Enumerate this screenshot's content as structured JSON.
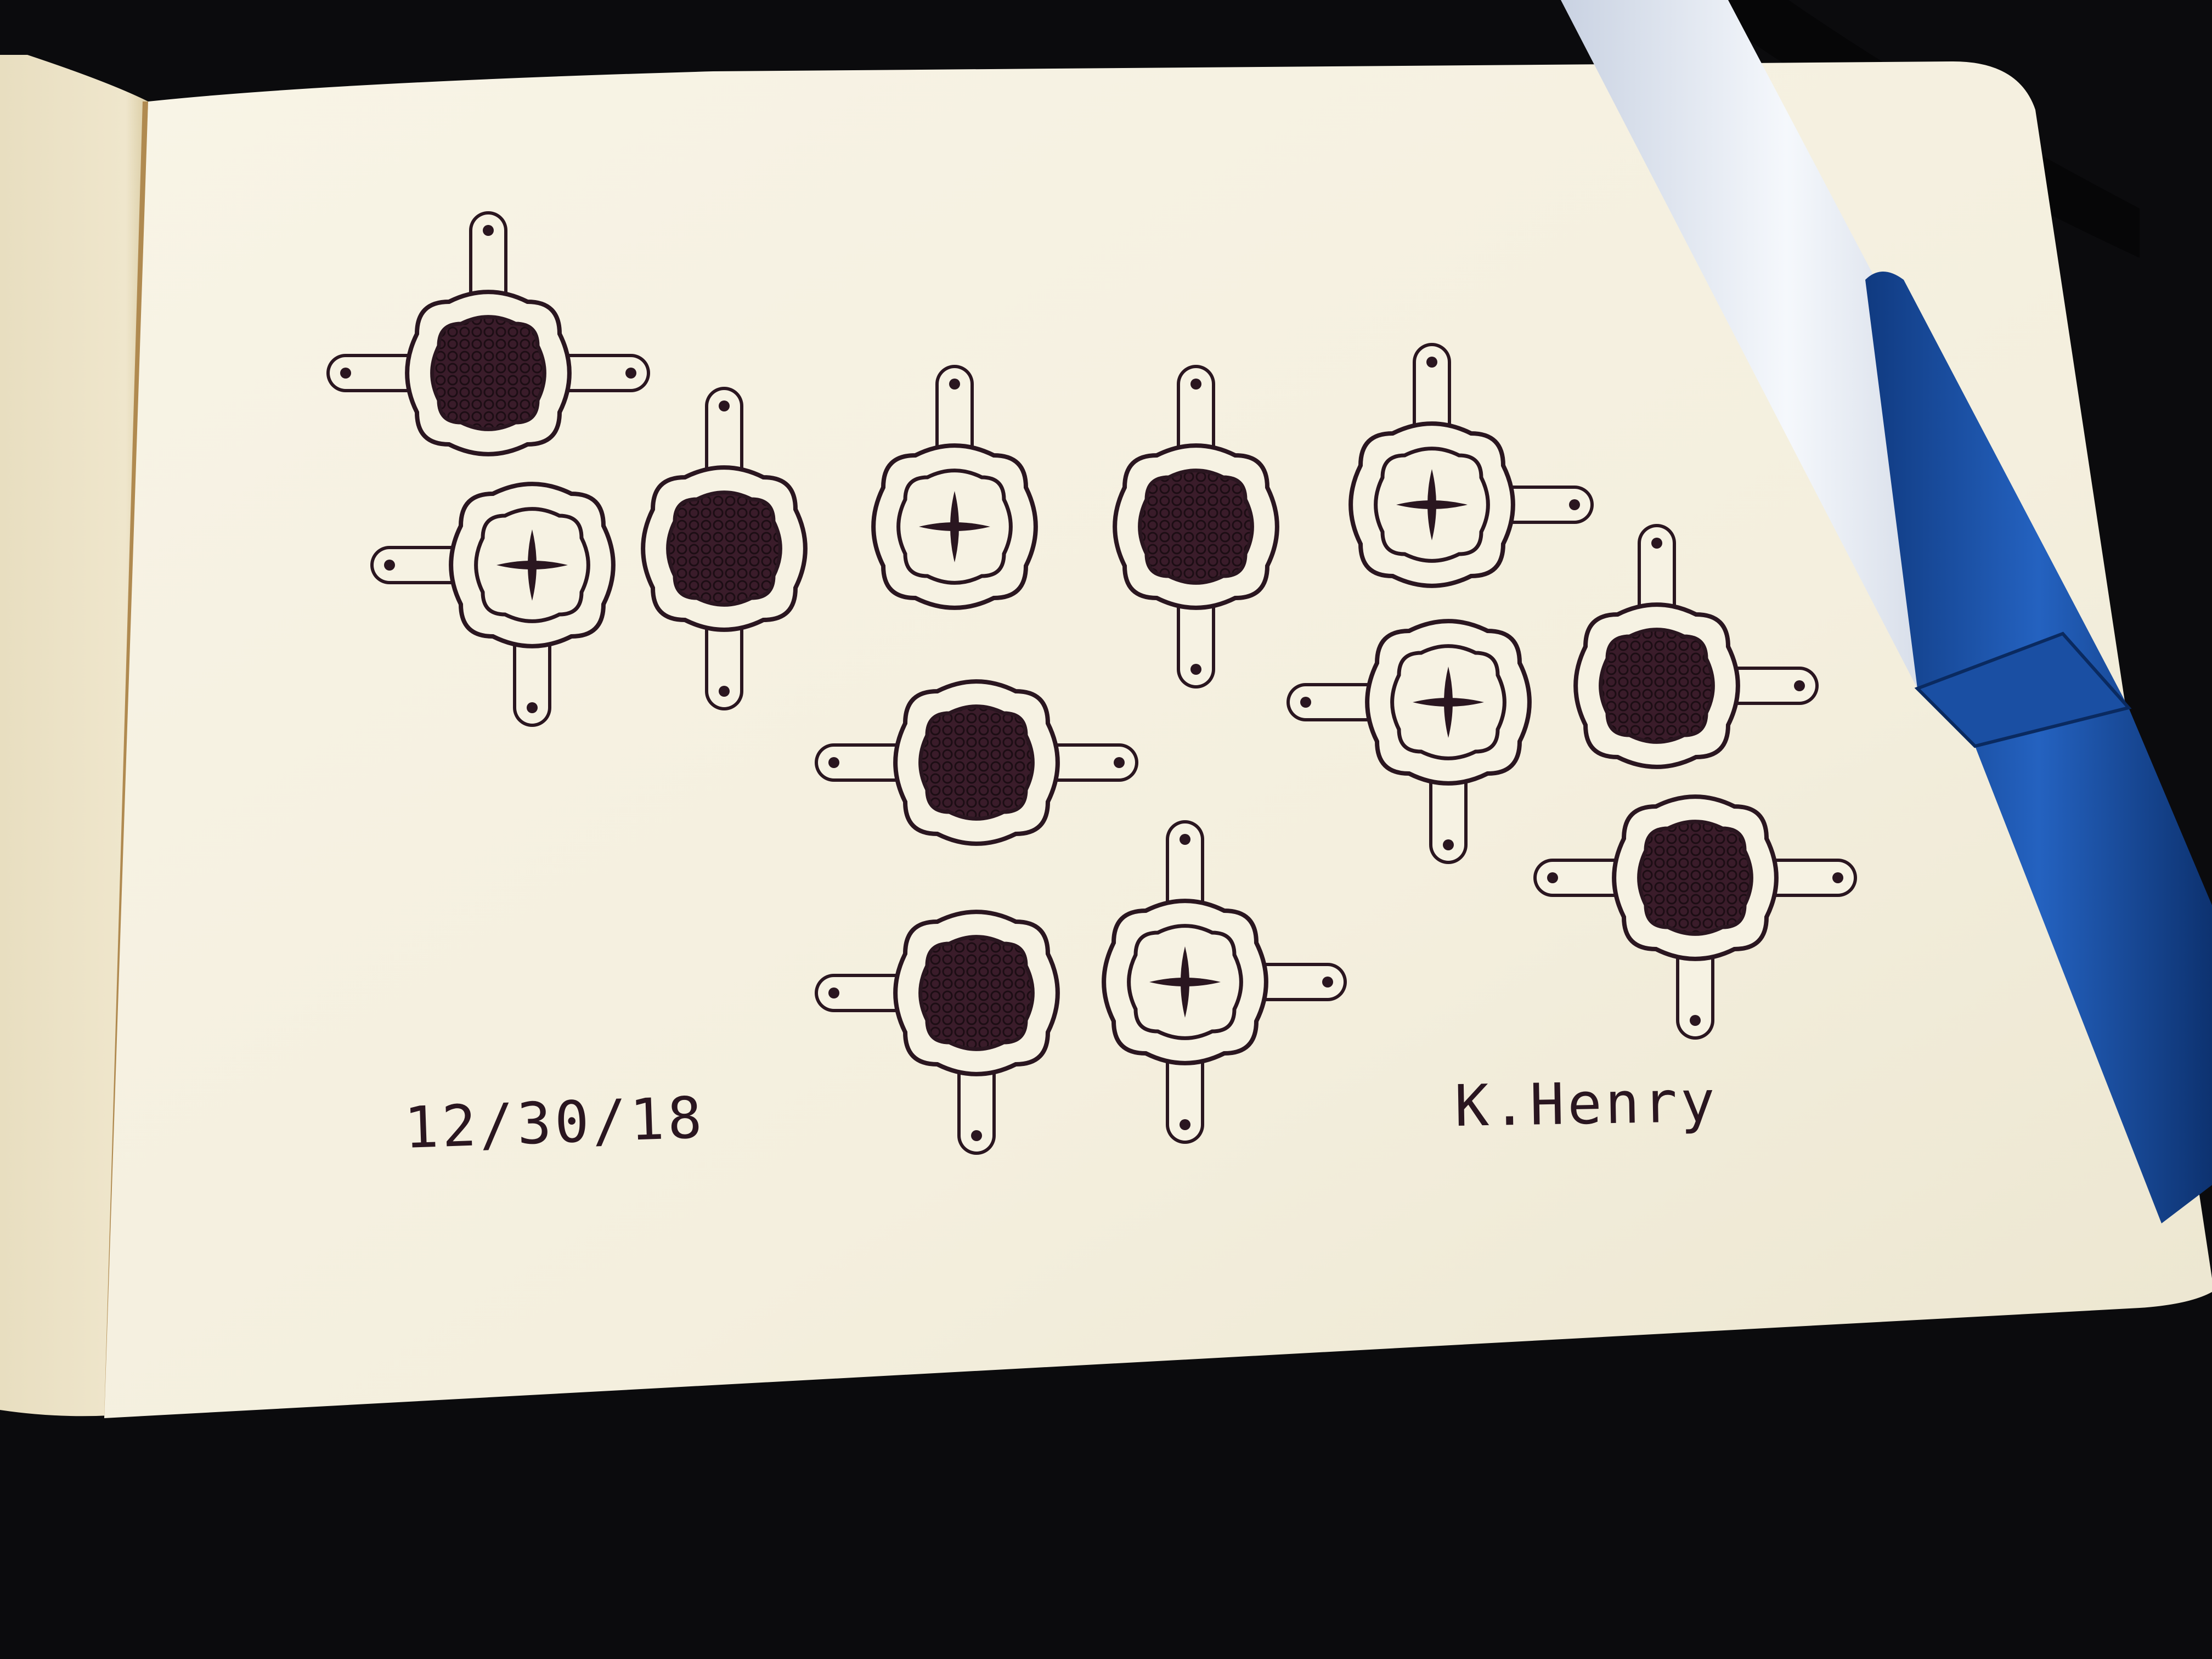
{
  "drawing": {
    "date": "12/30/18",
    "signature": "K.Henry"
  },
  "motifs": [
    {
      "id": "m1",
      "fill": "solid"
    },
    {
      "id": "m2",
      "fill": "cross"
    },
    {
      "id": "m3",
      "fill": "solid"
    },
    {
      "id": "m4",
      "fill": "cross"
    },
    {
      "id": "m5",
      "fill": "solid"
    },
    {
      "id": "m6",
      "fill": "cross"
    },
    {
      "id": "m7",
      "fill": "solid"
    },
    {
      "id": "m8",
      "fill": "cross"
    },
    {
      "id": "m9",
      "fill": "solid"
    },
    {
      "id": "m10",
      "fill": "solid"
    },
    {
      "id": "m11",
      "fill": "cross"
    },
    {
      "id": "m12",
      "fill": "solid"
    },
    {
      "id": "m13",
      "fill": "cross"
    }
  ],
  "colors": {
    "ink": "#2a1620",
    "paper": "#f7f3e4",
    "background": "#0b0b0d",
    "pen_barrel": "#e6ecf6",
    "pen_cap": "#1a4fa3"
  },
  "objects": [
    "sketchbook",
    "ballpoint-pen"
  ]
}
